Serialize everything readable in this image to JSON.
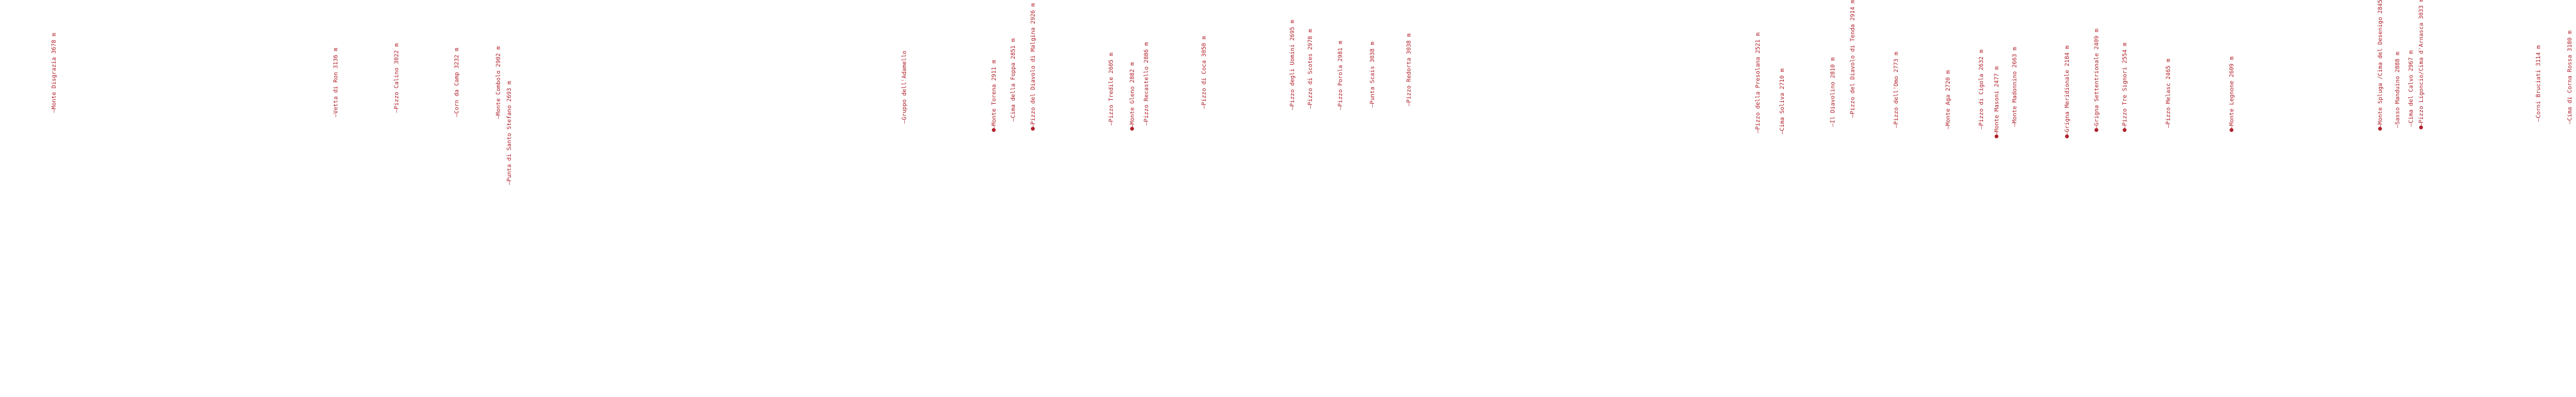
{
  "colors": {
    "label": "#b0202a",
    "background": "#ffffff"
  },
  "peaks": [
    {
      "name": "Monte Disgrazia 3678 m",
      "dot": false
    },
    {
      "name": "Vetta di Ron 3136 m",
      "dot": false
    },
    {
      "name": "Pizzo Calino 3022 m",
      "dot": false
    },
    {
      "name": "Corn da Camp 3232 m",
      "dot": false
    },
    {
      "name": "Monte Combolo 2902 m",
      "dot": false
    },
    {
      "name": "Punta di Santo Stefano 2693 m",
      "dot": false
    },
    {
      "name": "Gruppo dell'Adamello",
      "dot": false
    },
    {
      "name": "Monte Torena 2911 m",
      "dot": true
    },
    {
      "name": "Cima della Foppa 2851 m",
      "dot": false
    },
    {
      "name": "Pizzo del Diavolo di Malgina 2926 m",
      "dot": true
    },
    {
      "name": "Pizzo Tredile 2605 m",
      "dot": false
    },
    {
      "name": "Monte Gleno 2882 m",
      "dot": true
    },
    {
      "name": "Pizzo Recastello 2886 m",
      "dot": false
    },
    {
      "name": "Pizzo di Coca 3050 m",
      "dot": false
    },
    {
      "name": "Pizzo degli Uomini 2695 m",
      "dot": false
    },
    {
      "name": "Pizzo di Scotes 2978 m",
      "dot": false
    },
    {
      "name": "Pizzo Porola 2981 m",
      "dot": false
    },
    {
      "name": "Punta Scais 3038 m",
      "dot": false
    },
    {
      "name": "Pizzo Redorta 3038 m",
      "dot": false
    },
    {
      "name": "Pizzo della Presolana 2521 m",
      "dot": false
    },
    {
      "name": "Cima Soliva 2710 m",
      "dot": false
    },
    {
      "name": "Il Diavolino 2810 m",
      "dot": false
    },
    {
      "name": "Pizzo del Diavolo di Tenda 2914 m",
      "dot": false
    },
    {
      "name": "Pizzo dell'Omo 2773 m",
      "dot": false
    },
    {
      "name": "Monte Aga 2720 m",
      "dot": false
    },
    {
      "name": "Pizzo di Cigola 2632 m",
      "dot": false
    },
    {
      "name": "Monte Masoni 2477 m",
      "dot": true
    },
    {
      "name": "Monte Madonnino 2663 m",
      "dot": false
    },
    {
      "name": "Grigna Meridionale 2184 m",
      "dot": true
    },
    {
      "name": "Grigna Settentrionale 2409 m",
      "dot": true
    },
    {
      "name": "Pizzo Tre Signori 2554 m",
      "dot": true
    },
    {
      "name": "Pizzo Melasc 2465 m",
      "dot": false
    },
    {
      "name": "Monte Legnone 2609 m",
      "dot": true
    },
    {
      "name": "Monte Spluga /Cima del Desenigo 2845 m",
      "dot": true
    },
    {
      "name": "Sasso Manduino 2888 m",
      "dot": false
    },
    {
      "name": "Cima del Calvo 2967 m",
      "dot": false
    },
    {
      "name": "Pizzo Ligoncio/Cima d'Arnasca 3033 m",
      "dot": true
    },
    {
      "name": "Corni Bruciati 3114 m",
      "dot": false
    },
    {
      "name": "Cima di Corna Rossa 3180 m",
      "dot": false
    }
  ]
}
